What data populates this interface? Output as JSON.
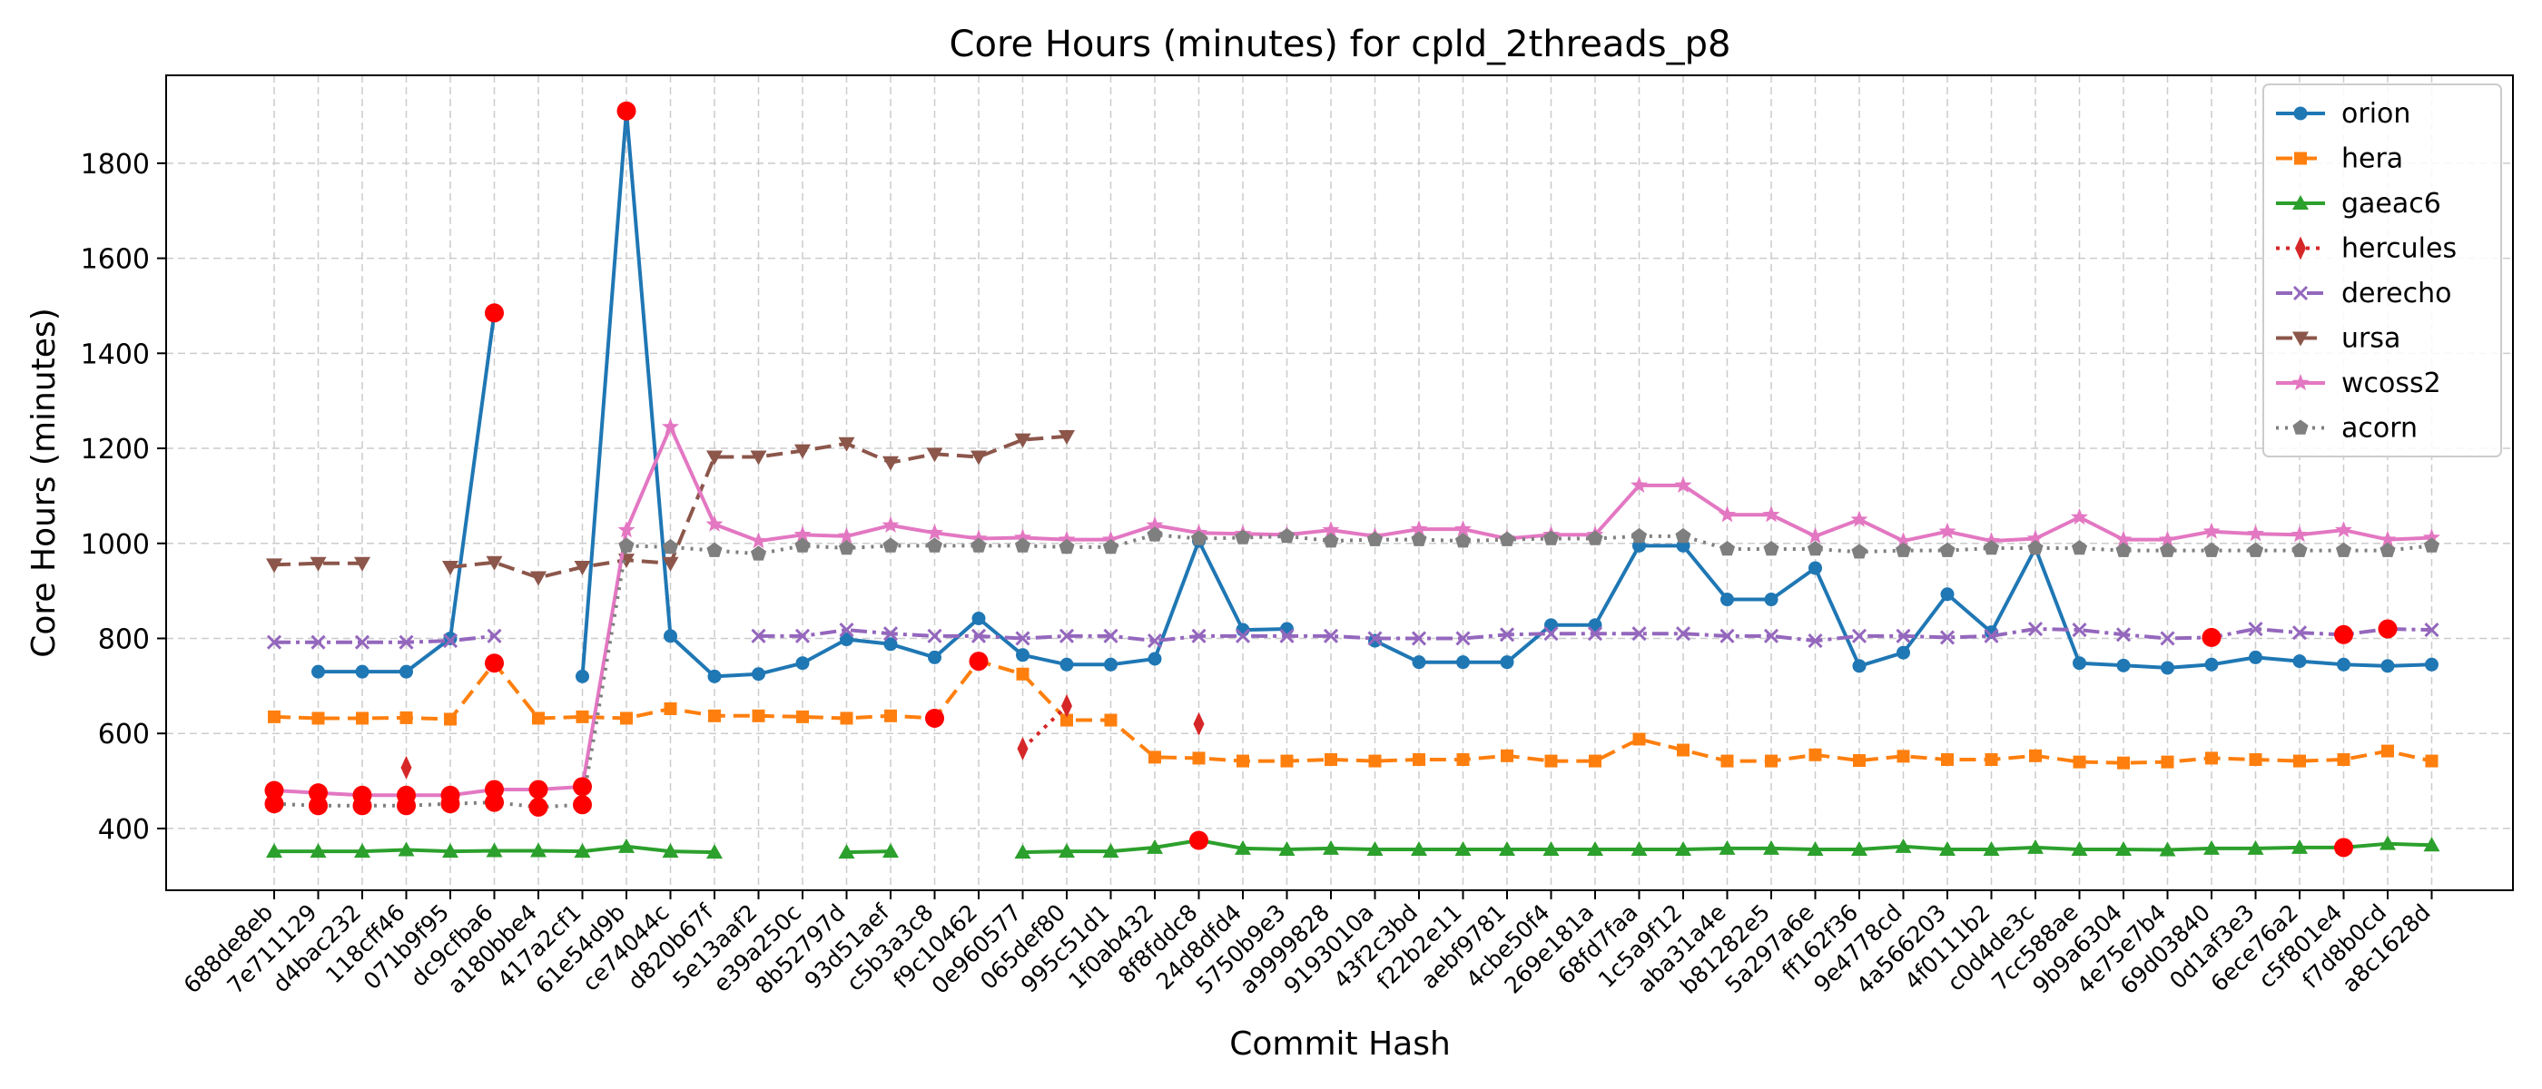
{
  "chart_data": {
    "type": "line",
    "title": "Core Hours (minutes) for cpld_2threads_p8",
    "xlabel": "Commit Hash",
    "ylabel": "Core Hours (minutes)",
    "ylim": [
      270,
      1985
    ],
    "yticks": [
      400,
      600,
      800,
      1000,
      1200,
      1400,
      1600,
      1800
    ],
    "grid": true,
    "legend_position": "top-right",
    "categories": [
      "688de8eb",
      "7e711129",
      "d4bac232",
      "118cff46",
      "071b9f95",
      "dc9cfba6",
      "a180bbe4",
      "417a2cf1",
      "61e54d9b",
      "ce74044c",
      "d820b67f",
      "5e13aaf2",
      "e39a250c",
      "8b52797d",
      "93d51aef",
      "c5b3a3c8",
      "f9c10462",
      "0e960577",
      "065def80",
      "995c51d1",
      "1f0ab432",
      "8f8fddc8",
      "24d8dfd4",
      "5750b9e3",
      "a9999828",
      "9193010a",
      "43f2c3bd",
      "f22b2e11",
      "aebf9781",
      "4cbe50f4",
      "269e181a",
      "68fd7faa",
      "1c5a9f12",
      "aba31a4e",
      "b81282e5",
      "5a297a6e",
      "ff162f36",
      "9e4778cd",
      "4a566203",
      "4f0111b2",
      "c0d4de3c",
      "7cc588ae",
      "9b9a6304",
      "4e75e7b4",
      "69d03840",
      "0d1af3e3",
      "6ece76a2",
      "c5f801e4",
      "f7d8b0cd",
      "a8c1628d"
    ],
    "series": [
      {
        "name": "orion",
        "color": "#1f77b4",
        "dash": "",
        "marker": "circle",
        "values": [
          null,
          730,
          730,
          730,
          800,
          1485,
          null,
          720,
          1910,
          805,
          720,
          725,
          748,
          798,
          788,
          760,
          842,
          765,
          745,
          745,
          757,
          1005,
          818,
          820,
          null,
          795,
          750,
          750,
          750,
          828,
          828,
          995,
          995,
          882,
          882,
          948,
          742,
          770,
          893,
          813,
          990,
          748,
          743,
          738,
          745,
          760,
          752,
          745,
          742,
          745
        ],
        "outliers": [
          5,
          8
        ]
      },
      {
        "name": "hera",
        "color": "#ff7f0e",
        "dash": "18,9",
        "marker": "square",
        "values": [
          635,
          632,
          632,
          633,
          630,
          748,
          632,
          635,
          632,
          652,
          637,
          637,
          635,
          632,
          637,
          632,
          752,
          725,
          628,
          628,
          550,
          548,
          542,
          542,
          545,
          542,
          545,
          545,
          553,
          542,
          542,
          588,
          565,
          542,
          542,
          555,
          543,
          552,
          545,
          545,
          553,
          540,
          538,
          540,
          548,
          545,
          542,
          545,
          563,
          542
        ],
        "outliers": [
          5,
          15,
          16
        ]
      },
      {
        "name": "gaeac6",
        "color": "#2ca02c",
        "dash": "",
        "marker": "triangle",
        "values": [
          352,
          352,
          352,
          355,
          352,
          353,
          353,
          352,
          362,
          352,
          350,
          null,
          null,
          350,
          352,
          null,
          null,
          350,
          352,
          352,
          360,
          375,
          358,
          356,
          358,
          356,
          356,
          356,
          356,
          356,
          356,
          356,
          356,
          358,
          358,
          356,
          356,
          362,
          356,
          356,
          360,
          356,
          356,
          355,
          358,
          358,
          360,
          360,
          368,
          365
        ],
        "outliers": [
          21,
          47
        ]
      },
      {
        "name": "hercules",
        "color": "#d62728",
        "dash": "4,7",
        "marker": "diamond",
        "values": [
          null,
          null,
          null,
          528,
          null,
          null,
          null,
          null,
          null,
          null,
          null,
          null,
          null,
          null,
          null,
          null,
          null,
          568,
          658,
          null,
          null,
          620,
          null,
          null,
          null,
          null,
          null,
          null,
          null,
          null,
          null,
          null,
          null,
          null,
          null,
          null,
          null,
          null,
          null,
          null,
          null,
          null,
          null,
          null,
          null,
          null,
          null,
          null,
          null,
          null
        ],
        "outliers": []
      },
      {
        "name": "derecho",
        "color": "#9467bd",
        "dash": "18,6,4,6",
        "marker": "x",
        "values": [
          792,
          792,
          792,
          792,
          795,
          805,
          null,
          null,
          null,
          null,
          null,
          805,
          805,
          818,
          810,
          805,
          805,
          800,
          805,
          805,
          795,
          805,
          805,
          805,
          805,
          800,
          800,
          800,
          808,
          810,
          810,
          810,
          810,
          805,
          805,
          795,
          805,
          805,
          802,
          805,
          820,
          818,
          808,
          800,
          802,
          820,
          812,
          808,
          820,
          818
        ],
        "outliers": [
          44,
          47,
          48
        ]
      },
      {
        "name": "ursa",
        "color": "#8c564b",
        "dash": "18,9",
        "marker": "triangle-down",
        "values": [
          955,
          958,
          958,
          null,
          950,
          960,
          928,
          950,
          965,
          958,
          1182,
          1182,
          1195,
          1210,
          1170,
          1188,
          1182,
          1218,
          1225,
          null,
          null,
          null,
          null,
          null,
          null,
          null,
          null,
          null,
          null,
          null,
          null,
          null,
          null,
          null,
          null,
          null,
          null,
          null,
          null,
          null,
          null,
          null,
          null,
          null,
          null,
          null,
          null,
          null,
          null,
          null
        ],
        "outliers": []
      },
      {
        "name": "wcoss2",
        "color": "#e377c2",
        "dash": "",
        "marker": "star",
        "values": [
          480,
          475,
          470,
          470,
          470,
          482,
          482,
          488,
          1028,
          1245,
          1040,
          1005,
          1018,
          1015,
          1038,
          1022,
          1010,
          1012,
          1008,
          1008,
          1038,
          1022,
          1020,
          1018,
          1028,
          1015,
          1030,
          1030,
          1010,
          1018,
          1018,
          1122,
          1122,
          1060,
          1060,
          1015,
          1050,
          1005,
          1025,
          1005,
          1010,
          1055,
          1008,
          1008,
          1025,
          1020,
          1018,
          1028,
          1008,
          1012
        ],
        "outliers": [
          0,
          1,
          2,
          3,
          4,
          5,
          6,
          7
        ]
      },
      {
        "name": "acorn",
        "color": "#7f7f7f",
        "dash": "3,7",
        "marker": "pentagon",
        "values": [
          452,
          448,
          448,
          448,
          452,
          455,
          445,
          450,
          995,
          992,
          985,
          978,
          995,
          990,
          995,
          995,
          995,
          995,
          992,
          992,
          1018,
          1010,
          1012,
          1015,
          1005,
          1008,
          1008,
          1005,
          1008,
          1010,
          1010,
          1015,
          1015,
          988,
          988,
          988,
          982,
          985,
          985,
          990,
          990,
          990,
          985,
          985,
          985,
          985,
          985,
          985,
          985,
          995
        ],
        "outliers": [
          0,
          1,
          2,
          3,
          4,
          5,
          6,
          7
        ]
      }
    ]
  }
}
